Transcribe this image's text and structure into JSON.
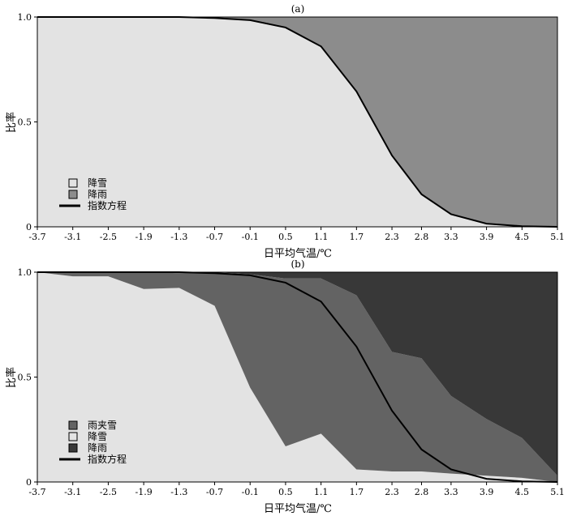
{
  "chart_data": [
    {
      "type": "area",
      "title": "(a)",
      "xlabel": "日平均气温/℃",
      "ylabel": "比率",
      "xlim": [
        -3.7,
        5.1
      ],
      "ylim": [
        0,
        1
      ],
      "x_ticks": [
        "-3.7",
        "-3.1",
        "-2.5",
        "-1.9",
        "-1.3",
        "-0.7",
        "-0.1",
        "0.5",
        "1.1",
        "1.7",
        "2.3",
        "2.8",
        "3.3",
        "3.9",
        "4.5",
        "5.1"
      ],
      "y_ticks": [
        "0",
        "0.5",
        "1.0"
      ],
      "legend_position": "bottom-left",
      "x": [
        -3.7,
        -3.1,
        -2.5,
        -1.9,
        -1.3,
        -0.7,
        -0.1,
        0.5,
        1.1,
        1.7,
        2.3,
        2.8,
        3.3,
        3.9,
        4.5,
        5.1
      ],
      "series": [
        {
          "name": "降雪",
          "type": "area",
          "color": "#e3e3e3",
          "values": [
            1.0,
            1.0,
            1.0,
            1.0,
            1.0,
            0.995,
            0.985,
            0.95,
            0.86,
            0.645,
            0.34,
            0.155,
            0.06,
            0.015,
            0.003,
            0.0
          ]
        },
        {
          "name": "降雨",
          "type": "area",
          "color": "#8c8c8c",
          "values": [
            0.0,
            0.0,
            0.0,
            0.0,
            0.0,
            0.005,
            0.015,
            0.05,
            0.14,
            0.355,
            0.66,
            0.845,
            0.94,
            0.985,
            0.997,
            1.0
          ]
        },
        {
          "name": "指数方程",
          "type": "line",
          "color": "#000000",
          "values": [
            1.0,
            1.0,
            1.0,
            1.0,
            1.0,
            0.995,
            0.985,
            0.95,
            0.86,
            0.645,
            0.34,
            0.155,
            0.06,
            0.015,
            0.003,
            0.0
          ]
        }
      ]
    },
    {
      "type": "area",
      "title": "(b)",
      "xlabel": "日平均气温/℃",
      "ylabel": "比率",
      "xlim": [
        -3.7,
        5.1
      ],
      "ylim": [
        0,
        1
      ],
      "x_ticks": [
        "-3.7",
        "-3.1",
        "-2.5",
        "-1.9",
        "-1.3",
        "-0.7",
        "-0.1",
        "0.5",
        "1.1",
        "1.7",
        "2.3",
        "2.8",
        "3.3",
        "3.9",
        "4.5",
        "5.1"
      ],
      "y_ticks": [
        "0",
        "0.5",
        "1.0"
      ],
      "legend_position": "bottom-left",
      "x": [
        -3.7,
        -3.1,
        -2.5,
        -1.9,
        -1.3,
        -0.7,
        -0.1,
        0.5,
        1.1,
        1.7,
        2.3,
        2.8,
        3.3,
        3.9,
        4.5,
        5.1
      ],
      "series": [
        {
          "name": "降雪",
          "type": "area",
          "color": "#e3e3e3",
          "values": [
            1.0,
            0.98,
            0.98,
            0.92,
            0.925,
            0.84,
            0.45,
            0.17,
            0.23,
            0.06,
            0.05,
            0.05,
            0.04,
            0.03,
            0.02,
            0.0
          ]
        },
        {
          "name": "雨夹雪",
          "type": "area",
          "color": "#636363",
          "values": [
            0.0,
            0.02,
            0.02,
            0.08,
            0.07,
            0.16,
            0.54,
            0.8,
            0.74,
            0.83,
            0.57,
            0.54,
            0.37,
            0.27,
            0.19,
            0.03
          ]
        },
        {
          "name": "降雨",
          "type": "area",
          "color": "#383838",
          "values": [
            0.0,
            0.0,
            0.0,
            0.0,
            0.005,
            0.0,
            0.01,
            0.03,
            0.03,
            0.11,
            0.38,
            0.41,
            0.59,
            0.7,
            0.79,
            0.97
          ]
        },
        {
          "name": "指数方程",
          "type": "line",
          "color": "#000000",
          "values": [
            1.0,
            1.0,
            1.0,
            1.0,
            1.0,
            0.995,
            0.985,
            0.95,
            0.86,
            0.645,
            0.34,
            0.155,
            0.06,
            0.015,
            0.003,
            0.0
          ]
        }
      ],
      "legend_order": [
        "雨夹雪",
        "降雪",
        "降雨",
        "指数方程"
      ]
    }
  ]
}
